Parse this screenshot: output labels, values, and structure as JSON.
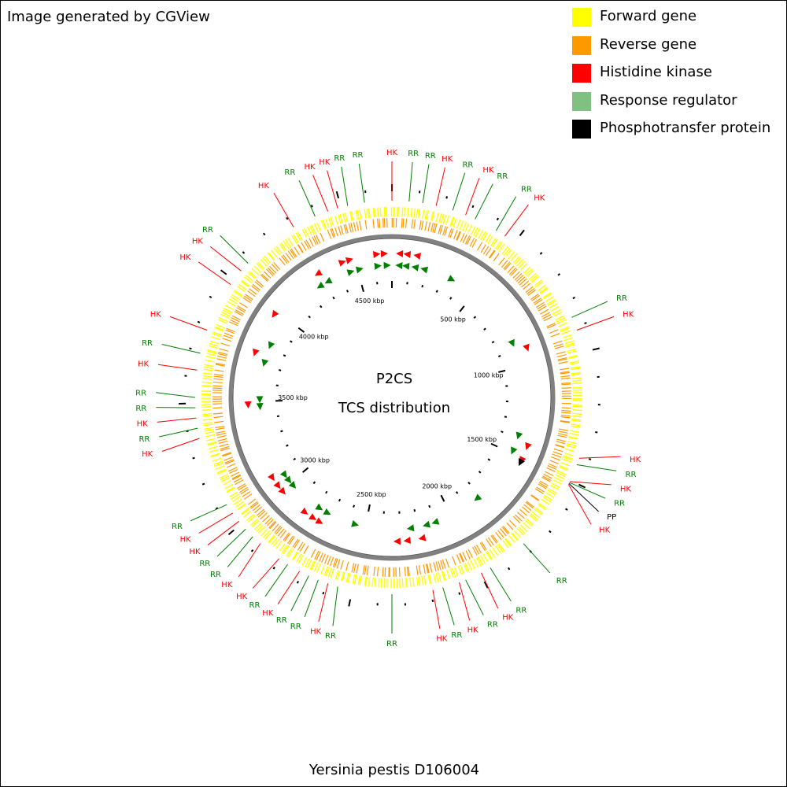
{
  "credit": "Image generated by CGView",
  "legend": [
    {
      "label": "Forward gene",
      "color": "#ffff00"
    },
    {
      "label": "Reverse gene",
      "color": "#ff9900"
    },
    {
      "label": "Histidine kinase",
      "color": "#ff0000"
    },
    {
      "label": "Response regulator",
      "color": "#80c080"
    },
    {
      "label": "Phosphotransfer protein",
      "color": "#000000"
    }
  ],
  "map": {
    "title": "P2CS",
    "subtitle": "TCS distribution",
    "caption": "Yersinia pestis D106004",
    "backbone_color": "#808080",
    "forward_color": "#ffff00",
    "reverse_color": "#ff9900",
    "hk_color": "#ff0000",
    "rr_color": "#008000",
    "pp_color": "#000000",
    "tick_labels": [
      {
        "angle": 38,
        "text": "500 kbp"
      },
      {
        "angle": 77,
        "text": "1000 kbp"
      },
      {
        "angle": 115,
        "text": "1500 kbp"
      },
      {
        "angle": 153,
        "text": "2000 kbp"
      },
      {
        "angle": 192,
        "text": "2500 kbp"
      },
      {
        "angle": 231,
        "text": "3000 kbp"
      },
      {
        "angle": 270,
        "text": "3500 kbp"
      },
      {
        "angle": 308,
        "text": "4000 kbp"
      },
      {
        "angle": 347,
        "text": "4500 kbp"
      }
    ],
    "callouts": [
      {
        "angle": 66,
        "label": "RR",
        "type": "RR"
      },
      {
        "angle": 70,
        "label": "HK",
        "type": "HK"
      },
      {
        "angle": 108,
        "label": "HK",
        "type": "HK"
      },
      {
        "angle": 110,
        "label": "RR",
        "type": "RR"
      },
      {
        "angle": 115.3,
        "label": "HK",
        "type": "HK"
      },
      {
        "angle": 115.6,
        "label": "RR",
        "type": "RR"
      },
      {
        "angle": 115.9,
        "label": "PP",
        "type": "PP"
      },
      {
        "angle": 116.2,
        "label": "HK",
        "type": "HK"
      },
      {
        "angle": 138,
        "label": "RR",
        "type": "RR"
      },
      {
        "angle": 150,
        "label": "RR",
        "type": "RR"
      },
      {
        "angle": 153,
        "label": "HK",
        "type": "HK"
      },
      {
        "angle": 158,
        "label": "RR",
        "type": "RR"
      },
      {
        "angle": 160,
        "label": "HK",
        "type": "HK"
      },
      {
        "angle": 165,
        "label": "RR",
        "type": "RR"
      },
      {
        "angle": 168,
        "label": "HK",
        "type": "HK"
      },
      {
        "angle": 180,
        "label": "RR",
        "type": "RR"
      },
      {
        "angle": 196,
        "label": "RR",
        "type": "RR"
      },
      {
        "angle": 199,
        "label": "HK",
        "type": "HK"
      },
      {
        "angle": 202,
        "label": "RR",
        "type": "RR"
      },
      {
        "angle": 205,
        "label": "RR",
        "type": "RR"
      },
      {
        "angle": 208,
        "label": "HK",
        "type": "HK"
      },
      {
        "angle": 212,
        "label": "RR",
        "type": "RR"
      },
      {
        "angle": 215,
        "label": "HK",
        "type": "HK"
      },
      {
        "angle": 222,
        "label": "HK",
        "type": "HK"
      },
      {
        "angle": 225,
        "label": "RR",
        "type": "RR"
      },
      {
        "angle": 228,
        "label": "RR",
        "type": "RR"
      },
      {
        "angle": 231,
        "label": "HK",
        "type": "HK"
      },
      {
        "angle": 234,
        "label": "HK",
        "type": "HK"
      },
      {
        "angle": 237,
        "label": "RR",
        "type": "RR"
      },
      {
        "angle": 258,
        "label": "HK",
        "type": "HK"
      },
      {
        "angle": 261,
        "label": "RR",
        "type": "RR"
      },
      {
        "angle": 264,
        "label": "HK",
        "type": "HK"
      },
      {
        "angle": 267,
        "label": "RR",
        "type": "RR"
      },
      {
        "angle": 270,
        "label": "RR",
        "type": "RR"
      },
      {
        "angle": 278,
        "label": "HK",
        "type": "HK"
      },
      {
        "angle": 283,
        "label": "RR",
        "type": "RR"
      },
      {
        "angle": 290,
        "label": "HK",
        "type": "HK"
      },
      {
        "angle": 305,
        "label": "HK",
        "type": "HK"
      },
      {
        "angle": 310,
        "label": "HK",
        "type": "HK"
      },
      {
        "angle": 313,
        "label": "RR",
        "type": "RR"
      },
      {
        "angle": 330,
        "label": "HK",
        "type": "HK"
      },
      {
        "angle": 337,
        "label": "RR",
        "type": "RR"
      },
      {
        "angle": 341,
        "label": "HK",
        "type": "HK"
      },
      {
        "angle": 344,
        "label": "HK",
        "type": "HK"
      },
      {
        "angle": 347,
        "label": "RR",
        "type": "RR"
      },
      {
        "angle": 352,
        "label": "RR",
        "type": "RR"
      },
      {
        "angle": 0,
        "label": "HK",
        "type": "HK"
      },
      {
        "angle": 5,
        "label": "RR",
        "type": "RR"
      },
      {
        "angle": 9,
        "label": "RR",
        "type": "RR"
      },
      {
        "angle": 13,
        "label": "HK",
        "type": "HK"
      },
      {
        "angle": 18,
        "label": "RR",
        "type": "RR"
      },
      {
        "angle": 22,
        "label": "HK",
        "type": "HK"
      },
      {
        "angle": 25,
        "label": "RR",
        "type": "RR"
      },
      {
        "angle": 32,
        "label": "RR",
        "type": "RR"
      },
      {
        "angle": 35,
        "label": "HK",
        "type": "HK"
      }
    ],
    "markers": [
      {
        "angle": 354,
        "type": "HK",
        "dir": 1
      },
      {
        "angle": 357,
        "type": "HK",
        "dir": 1
      },
      {
        "angle": 3,
        "type": "HK",
        "dir": -1
      },
      {
        "angle": 6,
        "type": "HK",
        "dir": -1
      },
      {
        "angle": 10,
        "type": "HK",
        "dir": -1
      },
      {
        "angle": 3,
        "type": "RR",
        "dir": -1
      },
      {
        "angle": 6,
        "type": "RR",
        "dir": -1
      },
      {
        "angle": 10,
        "type": "RR",
        "dir": -1
      },
      {
        "angle": 14,
        "type": "RR",
        "dir": -1
      },
      {
        "angle": 354,
        "type": "RR",
        "dir": 1
      },
      {
        "angle": 358,
        "type": "RR",
        "dir": 1
      },
      {
        "angle": 27,
        "type": "RR",
        "dir": 1
      },
      {
        "angle": 66,
        "type": "RR",
        "dir": 1
      },
      {
        "angle": 70,
        "type": "HK",
        "dir": 1
      },
      {
        "angle": 107,
        "type": "RR",
        "dir": 1
      },
      {
        "angle": 110,
        "type": "HK",
        "dir": 1
      },
      {
        "angle": 114,
        "type": "RR",
        "dir": 1
      },
      {
        "angle": 116,
        "type": "HK",
        "dir": 1
      },
      {
        "angle": 117,
        "type": "PP",
        "dir": 1
      },
      {
        "angle": 140,
        "type": "RR",
        "dir": 1
      },
      {
        "angle": 161,
        "type": "RR",
        "dir": 1
      },
      {
        "angle": 165,
        "type": "RR",
        "dir": 1
      },
      {
        "angle": 172,
        "type": "RR",
        "dir": 1
      },
      {
        "angle": 168,
        "type": "HK",
        "dir": 1
      },
      {
        "angle": 174,
        "type": "HK",
        "dir": 1
      },
      {
        "angle": 178,
        "type": "HK",
        "dir": 1
      },
      {
        "angle": 196,
        "type": "RR",
        "dir": -1
      },
      {
        "angle": 209,
        "type": "RR",
        "dir": -1
      },
      {
        "angle": 213,
        "type": "RR",
        "dir": -1
      },
      {
        "angle": 210,
        "type": "HK",
        "dir": -1
      },
      {
        "angle": 213,
        "type": "HK",
        "dir": -1
      },
      {
        "angle": 217,
        "type": "HK",
        "dir": -1
      },
      {
        "angle": 228,
        "type": "RR",
        "dir": -1
      },
      {
        "angle": 231,
        "type": "RR",
        "dir": -1
      },
      {
        "angle": 234,
        "type": "RR",
        "dir": -1
      },
      {
        "angle": 229,
        "type": "HK",
        "dir": -1
      },
      {
        "angle": 232,
        "type": "HK",
        "dir": -1
      },
      {
        "angle": 236,
        "type": "HK",
        "dir": -1
      },
      {
        "angle": 266,
        "type": "RR",
        "dir": -1
      },
      {
        "angle": 269,
        "type": "RR",
        "dir": -1
      },
      {
        "angle": 267,
        "type": "HK",
        "dir": -1
      },
      {
        "angle": 285,
        "type": "RR",
        "dir": -1
      },
      {
        "angle": 288,
        "type": "HK",
        "dir": -1
      },
      {
        "angle": 293,
        "type": "RR",
        "dir": -1
      },
      {
        "angle": 305,
        "type": "HK",
        "dir": -1
      },
      {
        "angle": 327,
        "type": "RR",
        "dir": -1
      },
      {
        "angle": 329,
        "type": "HK",
        "dir": -1
      },
      {
        "angle": 331,
        "type": "RR",
        "dir": -1
      },
      {
        "angle": 340,
        "type": "HK",
        "dir": 1
      },
      {
        "angle": 343,
        "type": "HK",
        "dir": 1
      },
      {
        "angle": 342,
        "type": "RR",
        "dir": 1
      },
      {
        "angle": 346,
        "type": "RR",
        "dir": 1
      }
    ]
  }
}
